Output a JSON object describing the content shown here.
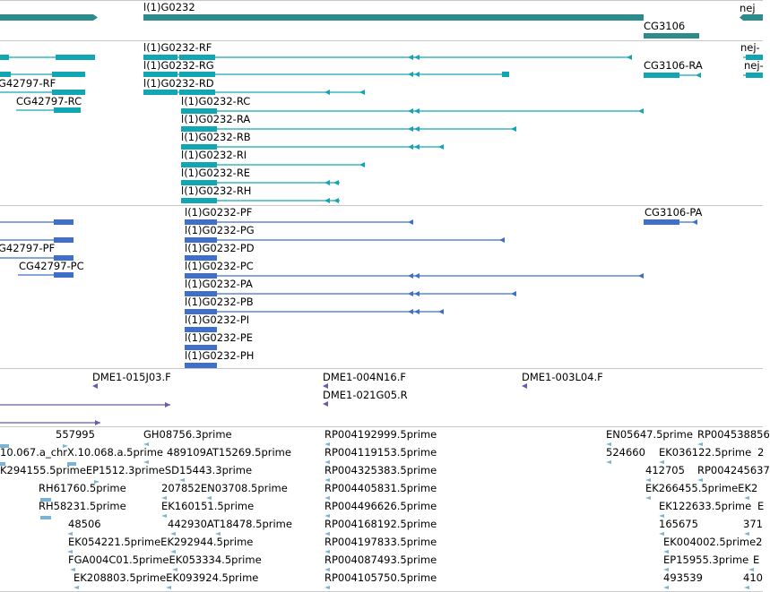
{
  "colors": {
    "gene": "#2e8b8b",
    "transcript": "#13a6b2",
    "protein": "#3f6fc9",
    "clone": "#6b5aa8",
    "est": "#7ab3d6",
    "separator": "#c8c8c8"
  },
  "gene_track": {
    "labels": {
      "gene_a": "l(1)G0232",
      "gene_b": "nej",
      "gene_c": "CG3106"
    }
  },
  "transcript_track": {
    "labels": {
      "rf": "l(1)G0232-RF",
      "rg": "l(1)G0232-RG",
      "rd": "l(1)G0232-RD",
      "rc": "l(1)G0232-RC",
      "ra": "l(1)G0232-RA",
      "rb": "l(1)G0232-RB",
      "ri": "l(1)G0232-RI",
      "re": "l(1)G0232-RE",
      "rh": "l(1)G0232-RH",
      "cg3106_ra": "CG3106-RA",
      "nej_1": "nej-",
      "nej_2": "nej-",
      "cg42797_rf": "G42797-RF",
      "cg42797_rc": "CG42797-RC"
    }
  },
  "protein_track": {
    "labels": {
      "pf": "l(1)G0232-PF",
      "pg": "l(1)G0232-PG",
      "pd": "l(1)G0232-PD",
      "pc": "l(1)G0232-PC",
      "pa": "l(1)G0232-PA",
      "pb": "l(1)G0232-PB",
      "pi": "l(1)G0232-PI",
      "pe": "l(1)G0232-PE",
      "ph": "l(1)G0232-PH",
      "cg3106_pa": "CG3106-PA",
      "cg42797_pf": "G42797-PF",
      "cg42797_pc": "CG42797-PC"
    }
  },
  "clone_track": {
    "labels": {
      "c1": "DME1-015J03.F",
      "c2": "DME1-004N16.F",
      "c3": "DME1-021G05.R",
      "c4": "DME1-003L04.F"
    }
  },
  "est_track": {
    "labels": {
      "e1": "557995",
      "e2": "GH08756.3prime",
      "e3": "RP004192999.5prime",
      "e4": "EN05647.5prime",
      "e5": "RP004538856",
      "e6": "10.067.a_chrX.10.068.a.5prime",
      "e7": "489109AT15269.5prime",
      "e8": "RP004119153.5prime",
      "e9": "524660",
      "e10": "EK036122.5prime",
      "e11": "2",
      "e12": "K294155.5primeEP1512.3primeSD15443.3prime",
      "e13": "RP004325383.5prime",
      "e14": "412705",
      "e15": "RP004245637",
      "e16": "RH61760.5prime",
      "e17": "207852EN03708.5prime",
      "e18": "RP004405831.5prime",
      "e19": "EK266455.5primeEK2",
      "e20": "RH58231.5prime",
      "e21": "EK160151.5prime",
      "e22": "RP004496626.5prime",
      "e23": "EK122633.5prime",
      "e24": "E",
      "e25": "48506",
      "e26": "442930AT18478.5prime",
      "e27": "RP004168192.5prime",
      "e28": "165675",
      "e29": "371",
      "e30": "EK054221.5primeEK292944.5prime",
      "e31": "RP004197833.5prime",
      "e32": "EK004002.5prime2",
      "e33": "FGA004C01.5primeEK053334.5prime",
      "e34": "RP004087493.5prime",
      "e35": "EP15955.3prime",
      "e36": "E",
      "e37": "EK208803.5primeEK093924.5prime",
      "e38": "RP004105750.5prime",
      "e39": "493539",
      "e40": "410"
    }
  }
}
